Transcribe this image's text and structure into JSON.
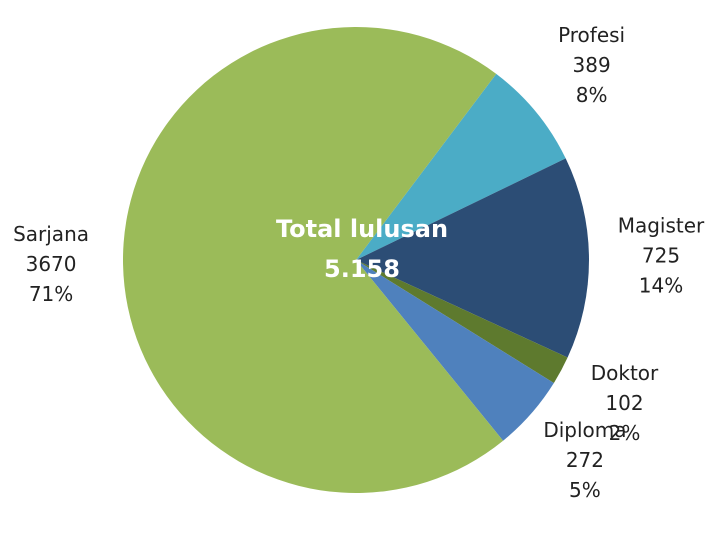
{
  "chart_data": {
    "type": "pie",
    "categories": [
      "Profesi",
      "Magister",
      "Doktor",
      "Diploma",
      "Sarjana"
    ],
    "values": [
      389,
      725,
      102,
      272,
      3670
    ],
    "percent_labels": [
      "8%",
      "14%",
      "2%",
      "5%",
      "71%"
    ],
    "colors": [
      "#4bacc6",
      "#2c4d75",
      "#5e7a2e",
      "#4f81bd",
      "#9bbb59"
    ],
    "start_angle": 37,
    "center_title": "Total lulusan",
    "center_value": "5.158"
  }
}
